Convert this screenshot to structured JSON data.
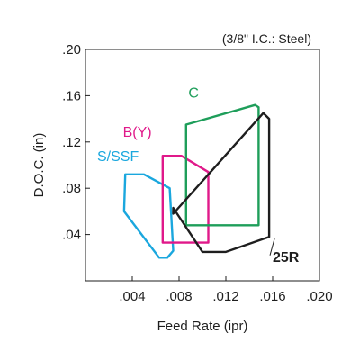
{
  "chart_data": {
    "type": "area",
    "subtitle": "(3/8\" I.C.: Steel)",
    "xlabel": "Feed Rate (ipr)",
    "ylabel": "D.O.C. (in)",
    "xlim": [
      0,
      0.02
    ],
    "ylim": [
      0,
      0.2
    ],
    "x_ticks": [
      {
        "value": 0.004,
        "label": ".004"
      },
      {
        "value": 0.008,
        "label": ".008"
      },
      {
        "value": 0.012,
        "label": ".012"
      },
      {
        "value": 0.016,
        "label": ".016"
      },
      {
        "value": 0.02,
        "label": ".020"
      }
    ],
    "y_ticks": [
      {
        "value": 0.04,
        "label": ".04"
      },
      {
        "value": 0.08,
        "label": ".08"
      },
      {
        "value": 0.12,
        "label": ".12"
      },
      {
        "value": 0.16,
        "label": ".16"
      },
      {
        "value": 0.2,
        "label": ".20"
      }
    ],
    "grid": false,
    "series": [
      {
        "name": "S/SSF",
        "color": "#1aa7de",
        "points": [
          [
            0.0034,
            0.092
          ],
          [
            0.005,
            0.092
          ],
          [
            0.0072,
            0.08
          ],
          [
            0.0075,
            0.026
          ],
          [
            0.007,
            0.02
          ],
          [
            0.0063,
            0.02
          ],
          [
            0.0033,
            0.06
          ]
        ]
      },
      {
        "name": "B(Y)",
        "color": "#e0198a",
        "points": [
          [
            0.0066,
            0.108
          ],
          [
            0.0082,
            0.108
          ],
          [
            0.0105,
            0.094
          ],
          [
            0.0105,
            0.033
          ],
          [
            0.0066,
            0.033
          ]
        ]
      },
      {
        "name": "C",
        "color": "#1e9e5a",
        "points": [
          [
            0.0086,
            0.135
          ],
          [
            0.0145,
            0.152
          ],
          [
            0.0148,
            0.15
          ],
          [
            0.0148,
            0.048
          ],
          [
            0.0086,
            0.048
          ]
        ]
      },
      {
        "name": "25R",
        "color": "#1e1e1e",
        "points": [
          [
            0.0075,
            0.058
          ],
          [
            0.0152,
            0.145
          ],
          [
            0.0157,
            0.14
          ],
          [
            0.0157,
            0.038
          ],
          [
            0.012,
            0.025
          ],
          [
            0.01,
            0.025
          ],
          [
            0.0075,
            0.063
          ]
        ]
      }
    ],
    "labels": [
      {
        "series": "C",
        "text": "C",
        "x": 0.0088,
        "y": 0.1585
      },
      {
        "series": "B(Y)",
        "text": "B(Y)",
        "x": 0.0032,
        "y": 0.1245
      },
      {
        "series": "S/SSF",
        "text": "S/SSF",
        "x": 0.001,
        "y": 0.1035
      },
      {
        "series": "25R",
        "text": "25R",
        "x": 0.016,
        "y": 0.0165
      }
    ]
  }
}
